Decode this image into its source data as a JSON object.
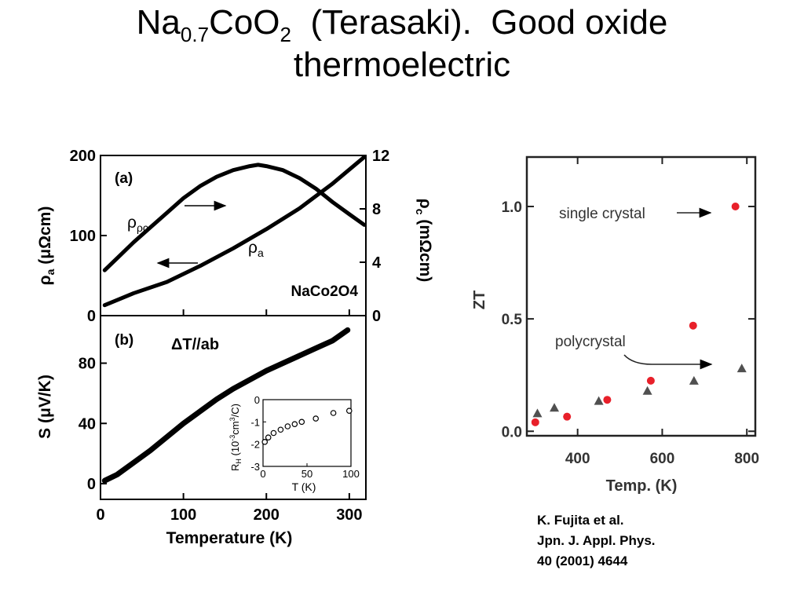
{
  "title": {
    "p1": "Na",
    "sub1": "0.7",
    "p2": "CoO",
    "sub2": "2",
    "p3": "  (Terasaki).  Good oxide",
    "line2": "thermoelectric"
  },
  "citation": {
    "line1": "K. Fujita et al.",
    "line2": "Jpn. J. Appl. Phys.",
    "line3": "40 (2001) 4644"
  },
  "chart_data": [
    {
      "type": "line",
      "panel_label": "(a)",
      "sample_label": "NaCo2O4",
      "xlabel": "",
      "xlim": [
        0,
        320
      ],
      "ylabel_left": "ρa (μΩcm)",
      "ylim_left": [
        0,
        200
      ],
      "yticks_left": [
        "0",
        "100",
        "200"
      ],
      "ylabel_right": "ρc (mΩcm)",
      "ylim_right": [
        0,
        12
      ],
      "yticks_right": [
        "0",
        "4",
        "8",
        "12"
      ],
      "series": [
        {
          "name": "ρa",
          "axis": "left",
          "x": [
            5,
            40,
            80,
            120,
            160,
            200,
            240,
            280,
            318
          ],
          "y": [
            13,
            28,
            42,
            62,
            84,
            108,
            134,
            165,
            198
          ]
        },
        {
          "name": "ρc",
          "axis": "right",
          "x": [
            5,
            20,
            40,
            60,
            80,
            100,
            120,
            140,
            160,
            180,
            190,
            200,
            220,
            240,
            260,
            280,
            300,
            318
          ],
          "y": [
            3.4,
            4.3,
            5.5,
            6.6,
            7.7,
            8.8,
            9.7,
            10.4,
            10.9,
            11.2,
            11.3,
            11.2,
            10.9,
            10.3,
            9.5,
            8.5,
            7.6,
            6.8
          ]
        }
      ]
    },
    {
      "type": "scatter",
      "panel_label": "(b)",
      "annotation": "ΔT//ab",
      "xlabel": "Temperature (K)",
      "xlim": [
        0,
        320
      ],
      "xticks": [
        "0",
        "100",
        "200",
        "300"
      ],
      "ylabel": "S (μV/K)",
      "ylim": [
        0,
        110
      ],
      "yticks": [
        "0",
        "40",
        "80"
      ],
      "series": [
        {
          "name": "S",
          "x": [
            5,
            20,
            40,
            60,
            80,
            100,
            120,
            140,
            160,
            180,
            200,
            220,
            240,
            260,
            280,
            298
          ],
          "y": [
            2,
            6,
            14,
            22,
            31,
            40,
            48,
            56,
            63,
            69,
            75,
            80,
            85,
            90,
            95,
            102
          ]
        }
      ],
      "inset": {
        "type": "scatter",
        "xlabel": "T (K)",
        "ylabel": "RH (10⁻³cm³/C)",
        "xlim": [
          0,
          100
        ],
        "ylim": [
          -3,
          0
        ],
        "xticks": [
          "0",
          "50",
          "100"
        ],
        "yticks": [
          "0",
          "-1",
          "-2",
          "-3"
        ],
        "x": [
          2,
          6,
          12,
          20,
          28,
          36,
          44,
          60,
          80,
          98
        ],
        "y": [
          -1.9,
          -1.7,
          -1.5,
          -1.35,
          -1.2,
          -1.1,
          -1.0,
          -0.85,
          -0.6,
          -0.5
        ]
      }
    },
    {
      "type": "scatter",
      "xlabel": "Temp. (K)",
      "ylabel": "ZT",
      "xlim": [
        280,
        820
      ],
      "ylim": [
        -0.02,
        1.22
      ],
      "xticks": [
        "400",
        "600",
        "800"
      ],
      "yticks": [
        "0.0",
        "0.5",
        "1.0"
      ],
      "annotations": [
        "single crystal",
        "polycrystal"
      ],
      "series": [
        {
          "name": "single crystal",
          "color": "#e8202a",
          "marker": "circle",
          "x": [
            300,
            375,
            470,
            573,
            673,
            773
          ],
          "y": [
            0.04,
            0.065,
            0.14,
            0.225,
            0.47,
            1.0
          ]
        },
        {
          "name": "polycrystal",
          "color": "#505050",
          "marker": "triangle",
          "x": [
            305,
            345,
            450,
            565,
            675,
            788
          ],
          "y": [
            0.08,
            0.105,
            0.135,
            0.18,
            0.225,
            0.28
          ]
        }
      ]
    }
  ]
}
